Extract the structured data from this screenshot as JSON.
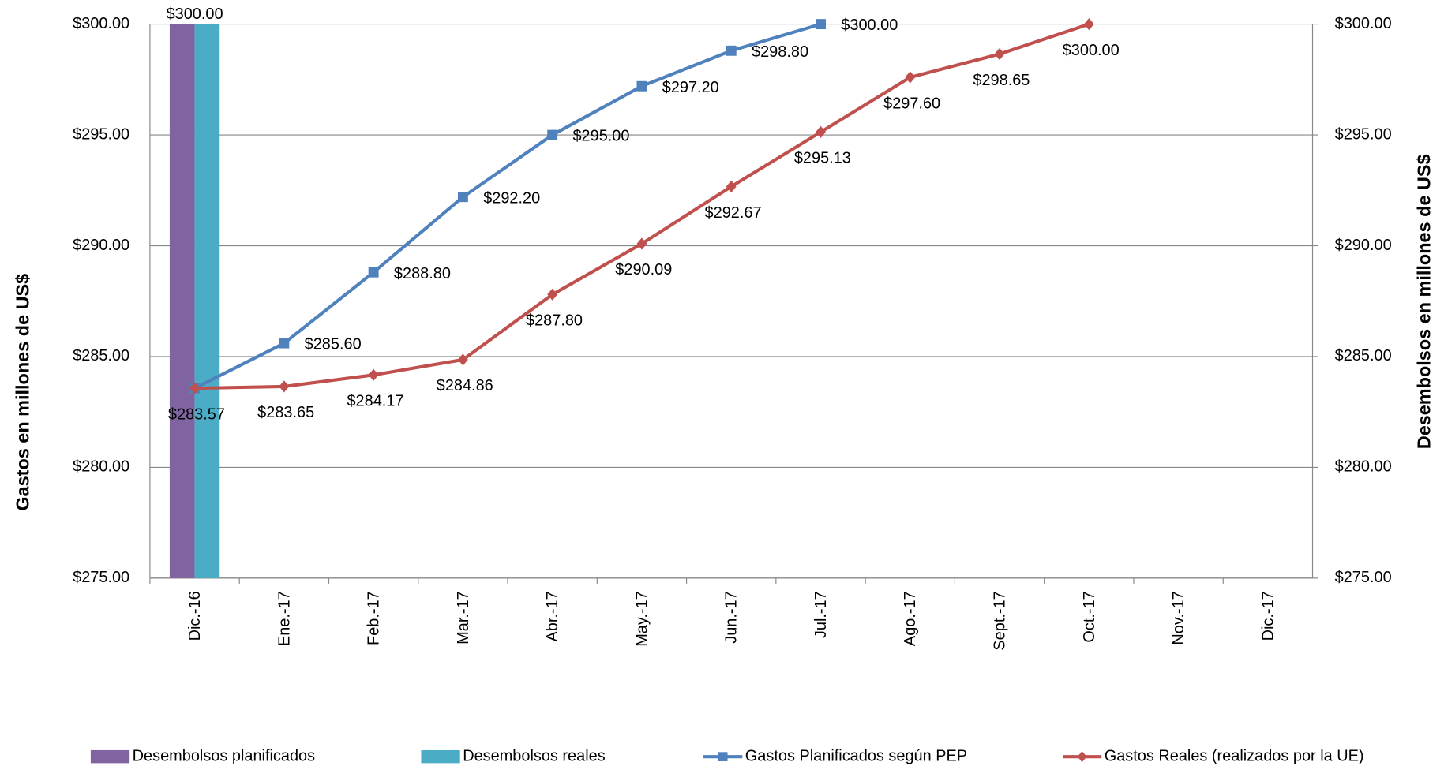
{
  "chart_data": {
    "type": "bar_line",
    "categories": [
      "Dic.-16",
      "Ene.-17",
      "Feb.-17",
      "Mar.-17",
      "Abr.-17",
      "May.-17",
      "Jun.-17",
      "Jul.-17",
      "Ago.-17",
      "Sept.-17",
      "Oct.-17",
      "Nov.-17",
      "Dic.-17"
    ],
    "y_label": "Gastos en millones de US$",
    "y2_label": "Desembolsos en millones de US$",
    "ylim": [
      275,
      300
    ],
    "yticks": [
      {
        "value": 275,
        "label": "$275.00"
      },
      {
        "value": 280,
        "label": "$280.00"
      },
      {
        "value": 285,
        "label": "$285.00"
      },
      {
        "value": 290,
        "label": "$290.00"
      },
      {
        "value": 295,
        "label": "$295.00"
      },
      {
        "value": 300,
        "label": "$300.00"
      }
    ],
    "y2lim": [
      275,
      300
    ],
    "y2ticks": [
      {
        "value": 275,
        "label": "$275.00"
      },
      {
        "value": 280,
        "label": "$280.00"
      },
      {
        "value": 285,
        "label": "$285.00"
      },
      {
        "value": 290,
        "label": "$290.00"
      },
      {
        "value": 295,
        "label": "$295.00"
      },
      {
        "value": 300,
        "label": "$300.00"
      }
    ],
    "grid": true,
    "legend": "bottom",
    "series": [
      {
        "name": "Desembolsos planificados",
        "type": "bar",
        "axis": "y2",
        "color": "#8064a2",
        "values": [
          300,
          null,
          null,
          null,
          null,
          null,
          null,
          null,
          null,
          null,
          null,
          null,
          null
        ],
        "value_labels": [
          "$300.00",
          null,
          null,
          null,
          null,
          null,
          null,
          null,
          null,
          null,
          null,
          null,
          null
        ]
      },
      {
        "name": "Desembolsos reales",
        "type": "bar",
        "axis": "y2",
        "color": "#4bacc6",
        "values": [
          300,
          null,
          null,
          null,
          null,
          null,
          null,
          null,
          null,
          null,
          null,
          null,
          null
        ]
      },
      {
        "name": "Gastos Planificados según PEP",
        "type": "line",
        "marker": "square",
        "color": "#4f81bd",
        "values": [
          283.57,
          285.6,
          288.8,
          292.2,
          295.0,
          297.2,
          298.8,
          300.0,
          null,
          null,
          null,
          null,
          null
        ],
        "value_labels": [
          null,
          "$285.60",
          "$288.80",
          "$292.20",
          "$295.00",
          "$297.20",
          "$298.80",
          "$300.00",
          null,
          null,
          null,
          null,
          null
        ]
      },
      {
        "name": "Gastos Reales  (realizados por la UE)",
        "type": "line",
        "marker": "diamond",
        "color": "#c0504d",
        "values": [
          283.57,
          283.65,
          284.17,
          284.86,
          287.8,
          290.09,
          292.67,
          295.13,
          297.6,
          298.65,
          300.0,
          null,
          null
        ],
        "value_labels": [
          "$283.57",
          "$283.65",
          "$284.17",
          "$284.86",
          "$287.80",
          "$290.09",
          "$292.67",
          "$295.13",
          "$297.60",
          "$298.65",
          "$300.00",
          null,
          null
        ]
      }
    ]
  }
}
